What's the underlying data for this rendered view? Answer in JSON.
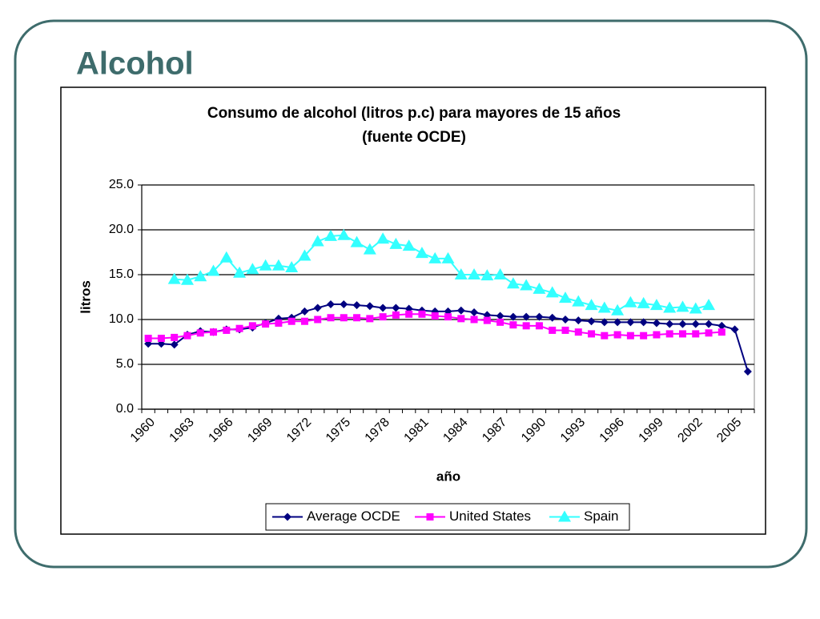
{
  "title": "Alcohol",
  "chart_data": {
    "type": "line",
    "title": "Consumo de alcohol (litros p.c) para mayores de 15 años",
    "subtitle": "(fuente OCDE)",
    "x_label": "año",
    "y_label": "litros",
    "categories": [
      "1960",
      null,
      null,
      "1963",
      null,
      null,
      "1966",
      null,
      null,
      "1969",
      null,
      null,
      "1972",
      null,
      null,
      "1975",
      null,
      null,
      "1978",
      null,
      null,
      "1981",
      null,
      null,
      "1984",
      null,
      null,
      "1987",
      null,
      null,
      "1990",
      null,
      null,
      "1993",
      null,
      null,
      "1996",
      null,
      null,
      "1999",
      null,
      null,
      "2002",
      null,
      null,
      "2005",
      null
    ],
    "ylim": [
      0,
      25
    ],
    "yticks": [
      {
        "value": 0,
        "label": "0.0"
      },
      {
        "value": 5,
        "label": "5.0"
      },
      {
        "value": 10,
        "label": "10.0"
      },
      {
        "value": 15,
        "label": "15.0"
      },
      {
        "value": 20,
        "label": "20.0"
      },
      {
        "value": 25,
        "label": "25.0"
      }
    ],
    "grid": true,
    "legend": "bottom",
    "series": [
      {
        "name": "Average OCDE",
        "color": "#000080",
        "marker": "diamond",
        "values": [
          7.3,
          7.3,
          7.2,
          8.3,
          8.7,
          8.6,
          8.9,
          8.9,
          9.1,
          9.6,
          10.1,
          10.2,
          10.9,
          11.3,
          11.7,
          11.7,
          11.6,
          11.5,
          11.3,
          11.3,
          11.2,
          11.0,
          10.9,
          10.9,
          11.0,
          10.8,
          10.5,
          10.4,
          10.3,
          10.3,
          10.3,
          10.2,
          10.0,
          9.9,
          9.8,
          9.7,
          9.7,
          9.7,
          9.7,
          9.6,
          9.5,
          9.5,
          9.5,
          9.5,
          9.3,
          8.9,
          4.2
        ]
      },
      {
        "name": "United States",
        "color": "#ff00ff",
        "marker": "square",
        "values": [
          7.9,
          7.9,
          8.0,
          8.2,
          8.5,
          8.6,
          8.8,
          9.0,
          9.3,
          9.5,
          9.6,
          9.8,
          9.8,
          10.0,
          10.2,
          10.2,
          10.2,
          10.1,
          10.3,
          10.5,
          10.6,
          10.6,
          10.4,
          10.3,
          10.1,
          10.0,
          9.9,
          9.7,
          9.4,
          9.3,
          9.3,
          8.8,
          8.8,
          8.6,
          8.4,
          8.2,
          8.3,
          8.2,
          8.2,
          8.3,
          8.4,
          8.4,
          8.4,
          8.5,
          8.6,
          null,
          null
        ]
      },
      {
        "name": "Spain",
        "color": "#33ffff",
        "marker": "triangle",
        "values": [
          null,
          null,
          14.5,
          14.4,
          14.8,
          15.4,
          16.9,
          15.2,
          15.6,
          16.0,
          16.0,
          15.8,
          17.1,
          18.7,
          19.3,
          19.4,
          18.6,
          17.8,
          19.0,
          18.4,
          18.2,
          17.4,
          16.8,
          16.8,
          15.0,
          15.0,
          14.9,
          15.0,
          14.0,
          13.8,
          13.4,
          13.0,
          12.4,
          12.0,
          11.6,
          11.3,
          11.0,
          11.9,
          11.8,
          11.6,
          11.3,
          11.4,
          11.2,
          11.6,
          null,
          null,
          null
        ]
      }
    ]
  }
}
